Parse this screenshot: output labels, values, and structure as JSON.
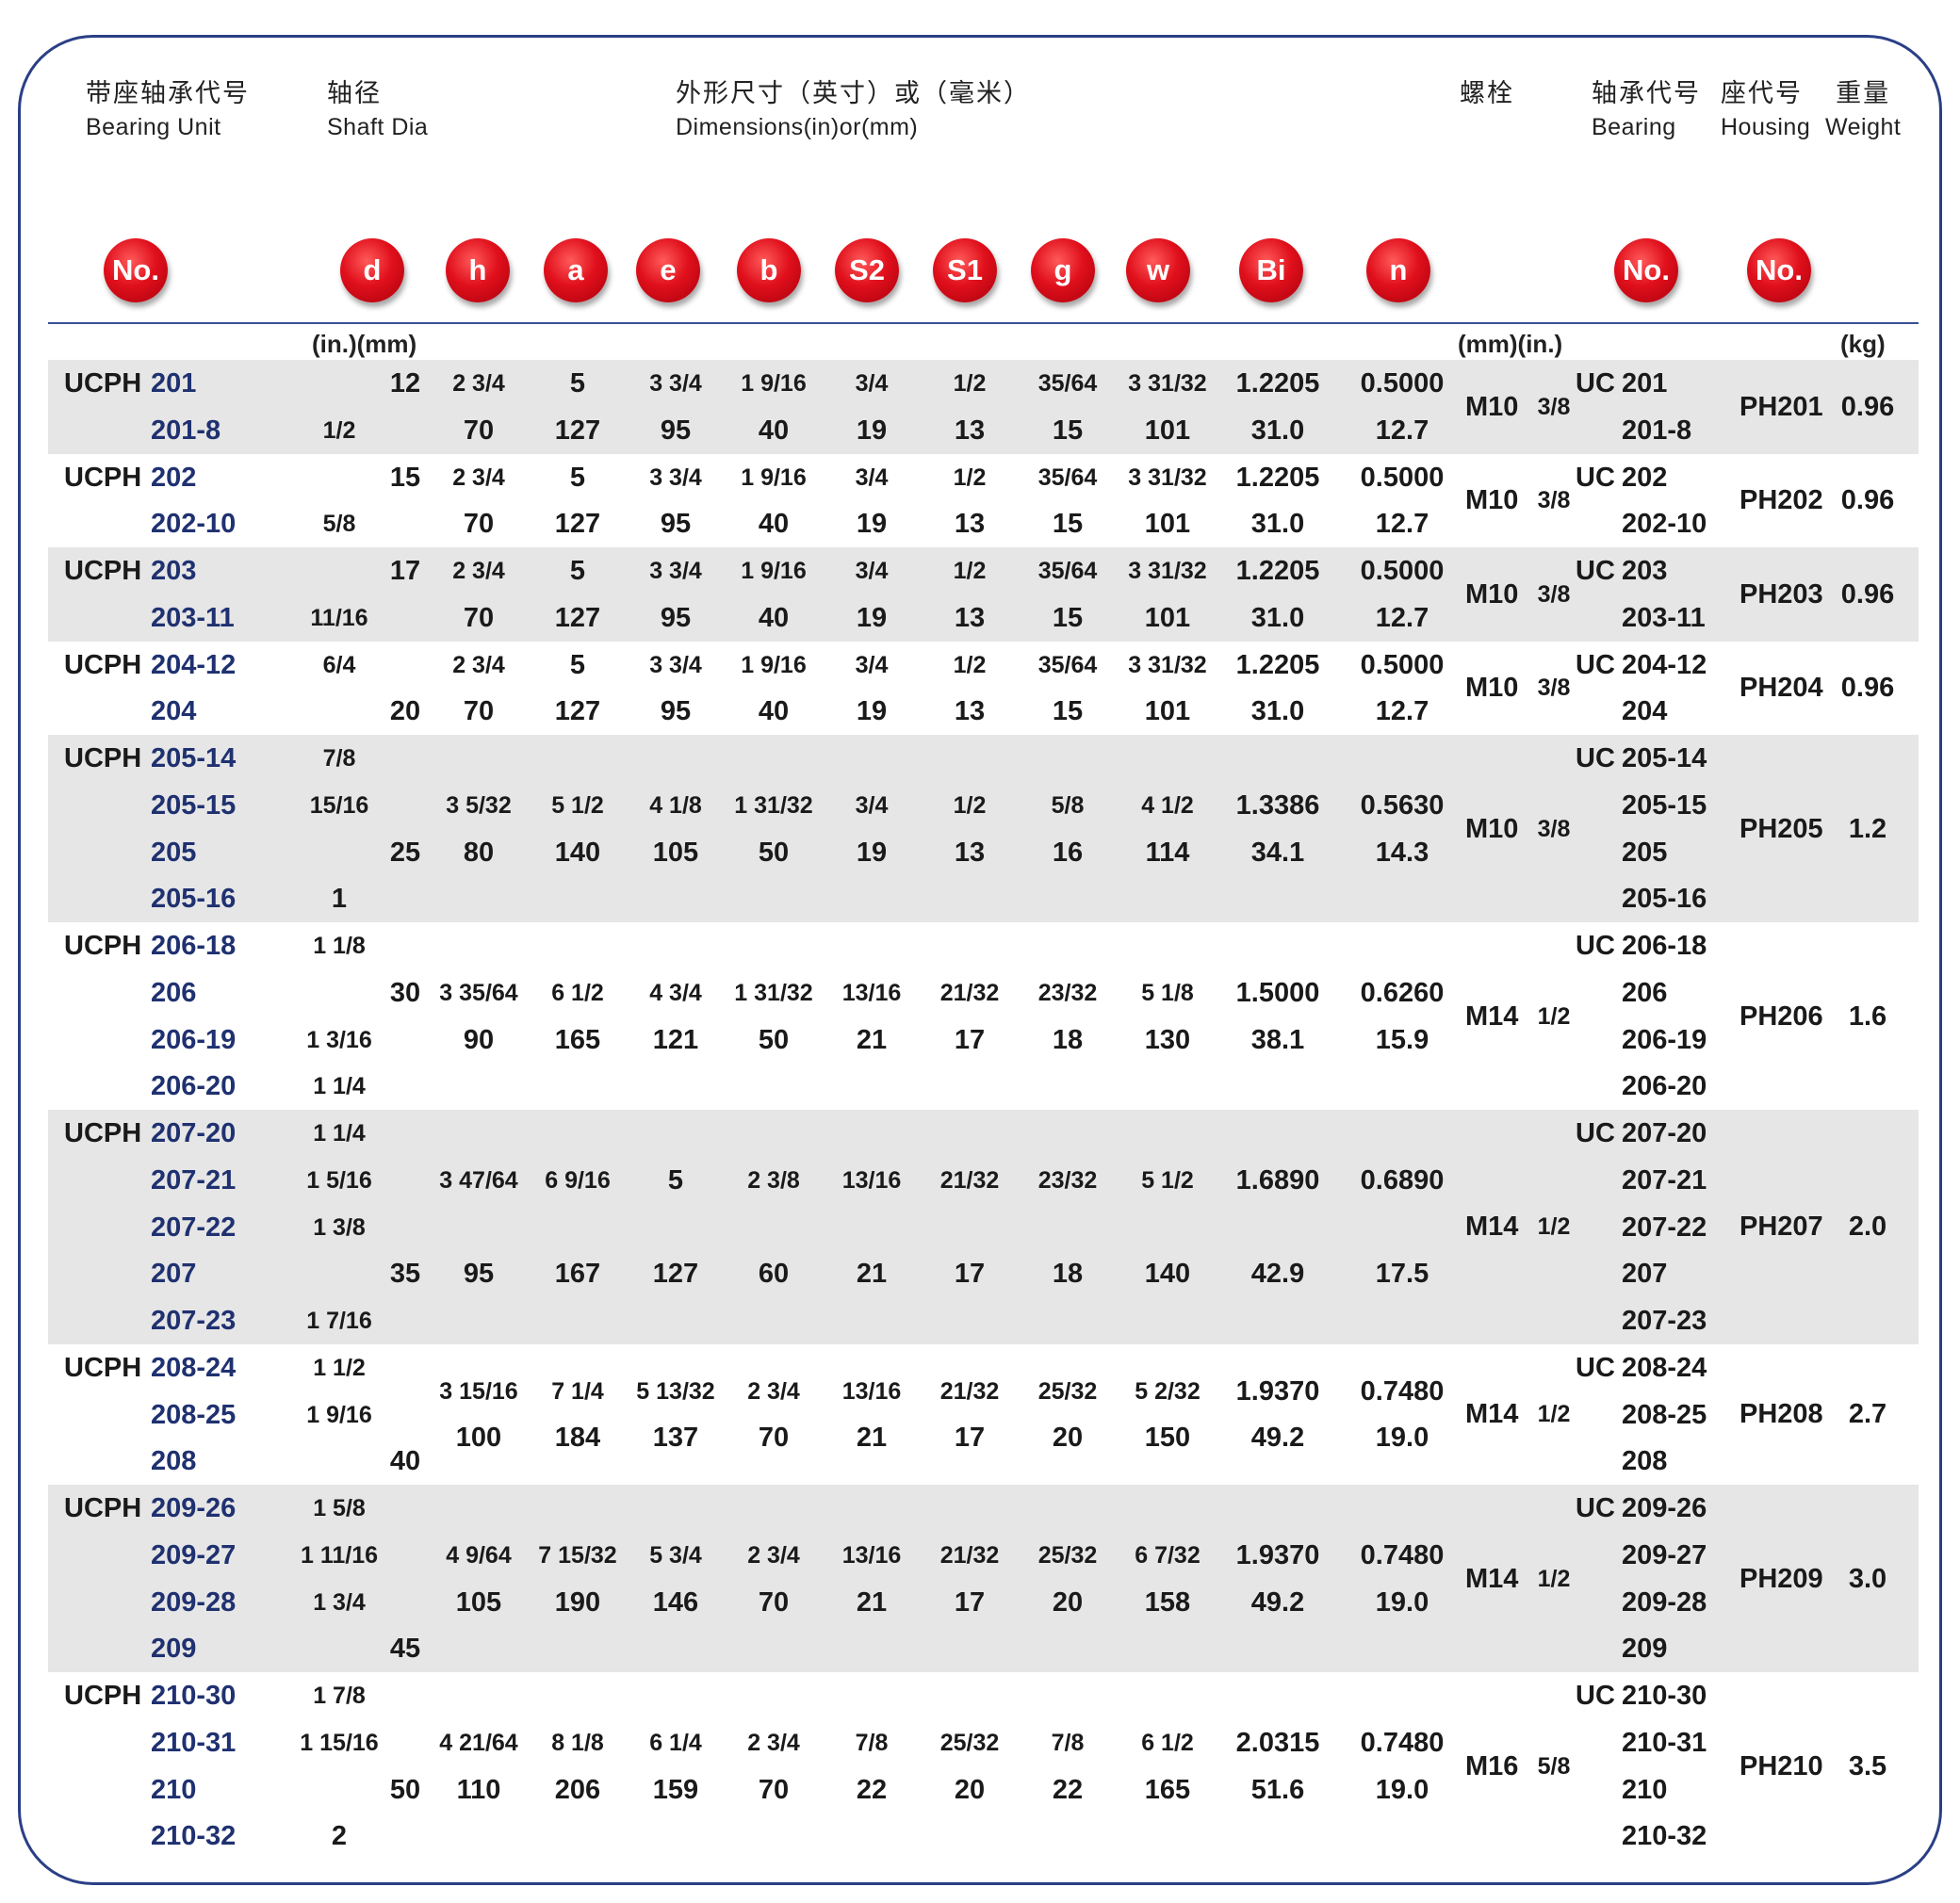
{
  "header": {
    "bearing_unit": {
      "zh": "带座轴承代号",
      "en": "Bearing Unit"
    },
    "shaft_dia": {
      "zh": "轴径",
      "en": "Shaft Dia"
    },
    "dimensions": {
      "zh": "外形尺寸（英寸）或（毫米）",
      "en": "Dimensions(in)or(mm)"
    },
    "bolt": {
      "zh": "螺栓"
    },
    "bearing": {
      "zh": "轴承代号",
      "en": "Bearing"
    },
    "housing": {
      "zh": "座代号",
      "en": "Housing"
    },
    "weight": {
      "zh": "重量",
      "en": "Weight"
    }
  },
  "badges": [
    "No.",
    "d",
    "h",
    "a",
    "e",
    "b",
    "S2",
    "S1",
    "g",
    "w",
    "Bi",
    "n",
    "No.",
    "No."
  ],
  "badge_color": "#e0101c",
  "units": {
    "shaft": "(in.)(mm)",
    "bolt": "(mm)(in.)",
    "weight": "(kg)"
  },
  "groups": [
    {
      "bolt": "M10",
      "bolt_in": "3/8",
      "housing": "PH201",
      "weight": "0.96",
      "rows": [
        {
          "prefix": "UCPH",
          "no": "201",
          "d_in": "",
          "d_mm": "12",
          "b_prefix": "UC",
          "bearing": "201",
          "dims": [
            "2 3/4",
            "5",
            "3 3/4",
            "1 9/16",
            "3/4",
            "1/2",
            "35/64",
            "3 31/32",
            "1.2205",
            "0.5000"
          ]
        },
        {
          "no": "201-8",
          "d_in": "1/2",
          "d_mm": "",
          "bearing": "201-8",
          "dims": [
            "70",
            "127",
            "95",
            "40",
            "19",
            "13",
            "15",
            "101",
            "31.0",
            "12.7"
          ]
        }
      ]
    },
    {
      "bolt": "M10",
      "bolt_in": "3/8",
      "housing": "PH202",
      "weight": "0.96",
      "rows": [
        {
          "prefix": "UCPH",
          "no": "202",
          "d_in": "",
          "d_mm": "15",
          "b_prefix": "UC",
          "bearing": "202",
          "dims": [
            "2 3/4",
            "5",
            "3 3/4",
            "1 9/16",
            "3/4",
            "1/2",
            "35/64",
            "3 31/32",
            "1.2205",
            "0.5000"
          ]
        },
        {
          "no": "202-10",
          "d_in": "5/8",
          "d_mm": "",
          "bearing": "202-10",
          "dims": [
            "70",
            "127",
            "95",
            "40",
            "19",
            "13",
            "15",
            "101",
            "31.0",
            "12.7"
          ]
        }
      ]
    },
    {
      "bolt": "M10",
      "bolt_in": "3/8",
      "housing": "PH203",
      "weight": "0.96",
      "rows": [
        {
          "prefix": "UCPH",
          "no": "203",
          "d_in": "",
          "d_mm": "17",
          "b_prefix": "UC",
          "bearing": "203",
          "dims": [
            "2 3/4",
            "5",
            "3 3/4",
            "1 9/16",
            "3/4",
            "1/2",
            "35/64",
            "3 31/32",
            "1.2205",
            "0.5000"
          ]
        },
        {
          "no": "203-11",
          "d_in": "11/16",
          "d_mm": "",
          "bearing": "203-11",
          "dims": [
            "70",
            "127",
            "95",
            "40",
            "19",
            "13",
            "15",
            "101",
            "31.0",
            "12.7"
          ]
        }
      ]
    },
    {
      "bolt": "M10",
      "bolt_in": "3/8",
      "housing": "PH204",
      "weight": "0.96",
      "rows": [
        {
          "prefix": "UCPH",
          "no": "204-12",
          "d_in": "6/4",
          "d_mm": "",
          "b_prefix": "UC",
          "bearing": "204-12",
          "dims": [
            "2 3/4",
            "5",
            "3 3/4",
            "1 9/16",
            "3/4",
            "1/2",
            "35/64",
            "3 31/32",
            "1.2205",
            "0.5000"
          ]
        },
        {
          "no": "204",
          "d_in": "",
          "d_mm": "20",
          "bearing": "204",
          "dims": [
            "70",
            "127",
            "95",
            "40",
            "19",
            "13",
            "15",
            "101",
            "31.0",
            "12.7"
          ]
        }
      ]
    },
    {
      "bolt": "M10",
      "bolt_in": "3/8",
      "housing": "PH205",
      "weight": "1.2",
      "rows": [
        {
          "prefix": "UCPH",
          "no": "205-14",
          "d_in": "7/8",
          "d_mm": "",
          "b_prefix": "UC",
          "bearing": "205-14",
          "dims": []
        },
        {
          "no": "205-15",
          "d_in": "15/16",
          "d_mm": "",
          "bearing": "205-15",
          "dims": [
            "3 5/32",
            "5 1/2",
            "4 1/8",
            "1 31/32",
            "3/4",
            "1/2",
            "5/8",
            "4 1/2",
            "1.3386",
            "0.5630"
          ]
        },
        {
          "no": "205",
          "d_in": "",
          "d_mm": "25",
          "bearing": "205",
          "dims": [
            "80",
            "140",
            "105",
            "50",
            "19",
            "13",
            "16",
            "114",
            "34.1",
            "14.3"
          ]
        },
        {
          "no": "205-16",
          "d_in": "1",
          "d_mm": "",
          "bearing": "205-16",
          "dims": []
        }
      ]
    },
    {
      "bolt": "M14",
      "bolt_in": "1/2",
      "housing": "PH206",
      "weight": "1.6",
      "rows": [
        {
          "prefix": "UCPH",
          "no": "206-18",
          "d_in": "1 1/8",
          "d_mm": "",
          "b_prefix": "UC",
          "bearing": "206-18",
          "dims": []
        },
        {
          "no": "206",
          "d_in": "",
          "d_mm": "30",
          "bearing": "206",
          "dims": [
            "3 35/64",
            "6 1/2",
            "4 3/4",
            "1 31/32",
            "13/16",
            "21/32",
            "23/32",
            "5 1/8",
            "1.5000",
            "0.6260"
          ]
        },
        {
          "no": "206-19",
          "d_in": "1 3/16",
          "d_mm": "",
          "bearing": "206-19",
          "dims": [
            "90",
            "165",
            "121",
            "50",
            "21",
            "17",
            "18",
            "130",
            "38.1",
            "15.9"
          ]
        },
        {
          "no": "206-20",
          "d_in": "1 1/4",
          "d_mm": "",
          "bearing": "206-20",
          "dims": []
        }
      ]
    },
    {
      "bolt": "M14",
      "bolt_in": "1/2",
      "housing": "PH207",
      "weight": "2.0",
      "rows": [
        {
          "prefix": "UCPH",
          "no": "207-20",
          "d_in": "1 1/4",
          "d_mm": "",
          "b_prefix": "UC",
          "bearing": "207-20",
          "dims": []
        },
        {
          "no": "207-21",
          "d_in": "1 5/16",
          "d_mm": "",
          "bearing": "207-21",
          "dims": [
            "3 47/64",
            "6 9/16",
            "5",
            "2 3/8",
            "13/16",
            "21/32",
            "23/32",
            "5 1/2",
            "1.6890",
            "0.6890"
          ]
        },
        {
          "no": "207-22",
          "d_in": "1 3/8",
          "d_mm": "",
          "bearing": "207-22",
          "dims": []
        },
        {
          "no": "207",
          "d_in": "",
          "d_mm": "35",
          "bearing": "207",
          "dims": [
            "95",
            "167",
            "127",
            "60",
            "21",
            "17",
            "18",
            "140",
            "42.9",
            "17.5"
          ]
        },
        {
          "no": "207-23",
          "d_in": "1 7/16",
          "d_mm": "",
          "bearing": "207-23",
          "dims": []
        }
      ]
    },
    {
      "bolt": "M14",
      "bolt_in": "1/2",
      "housing": "PH208",
      "weight": "2.7",
      "rows": [
        {
          "prefix": "UCPH",
          "no": "208-24",
          "d_in": "1 1/2",
          "d_mm": "",
          "b_prefix": "UC",
          "bearing": "208-24",
          "dims": [
            "3 15/16",
            "7 1/4",
            "5 13/32",
            "2 3/4",
            "13/16",
            "21/32",
            "25/32",
            "5 2/32",
            "1.9370",
            "0.7480"
          ]
        },
        {
          "no": "208-25",
          "d_in": "1 9/16",
          "d_mm": "",
          "bearing": "208-25",
          "dims": [
            "100",
            "184",
            "137",
            "70",
            "21",
            "17",
            "20",
            "150",
            "49.2",
            "19.0"
          ]
        },
        {
          "no": "208",
          "d_in": "",
          "d_mm": "40",
          "bearing": "208",
          "dims": []
        }
      ]
    },
    {
      "bolt": "M14",
      "bolt_in": "1/2",
      "housing": "PH209",
      "weight": "3.0",
      "rows": [
        {
          "prefix": "UCPH",
          "no": "209-26",
          "d_in": "1 5/8",
          "d_mm": "",
          "b_prefix": "UC",
          "bearing": "209-26",
          "dims": []
        },
        {
          "no": "209-27",
          "d_in": "1 11/16",
          "d_mm": "",
          "bearing": "209-27",
          "dims": [
            "4 9/64",
            "7 15/32",
            "5 3/4",
            "2 3/4",
            "13/16",
            "21/32",
            "25/32",
            "6 7/32",
            "1.9370",
            "0.7480"
          ]
        },
        {
          "no": "209-28",
          "d_in": "1 3/4",
          "d_mm": "",
          "bearing": "209-28",
          "dims": [
            "105",
            "190",
            "146",
            "70",
            "21",
            "17",
            "20",
            "158",
            "49.2",
            "19.0"
          ]
        },
        {
          "no": "209",
          "d_in": "",
          "d_mm": "45",
          "bearing": "209",
          "dims": []
        }
      ]
    },
    {
      "bolt": "M16",
      "bolt_in": "5/8",
      "housing": "PH210",
      "weight": "3.5",
      "rows": [
        {
          "prefix": "UCPH",
          "no": "210-30",
          "d_in": "1 7/8",
          "d_mm": "",
          "b_prefix": "UC",
          "bearing": "210-30",
          "dims": []
        },
        {
          "no": "210-31",
          "d_in": "1 15/16",
          "d_mm": "",
          "bearing": "210-31",
          "dims": [
            "4 21/64",
            "8 1/8",
            "6 1/4",
            "2 3/4",
            "7/8",
            "25/32",
            "7/8",
            "6 1/2",
            "2.0315",
            "0.7480"
          ]
        },
        {
          "no": "210",
          "d_in": "",
          "d_mm": "50",
          "bearing": "210",
          "dims": [
            "110",
            "206",
            "159",
            "70",
            "22",
            "20",
            "22",
            "165",
            "51.6",
            "19.0"
          ]
        },
        {
          "no": "210-32",
          "d_in": "2",
          "d_mm": "",
          "bearing": "210-32",
          "dims": []
        }
      ]
    }
  ]
}
